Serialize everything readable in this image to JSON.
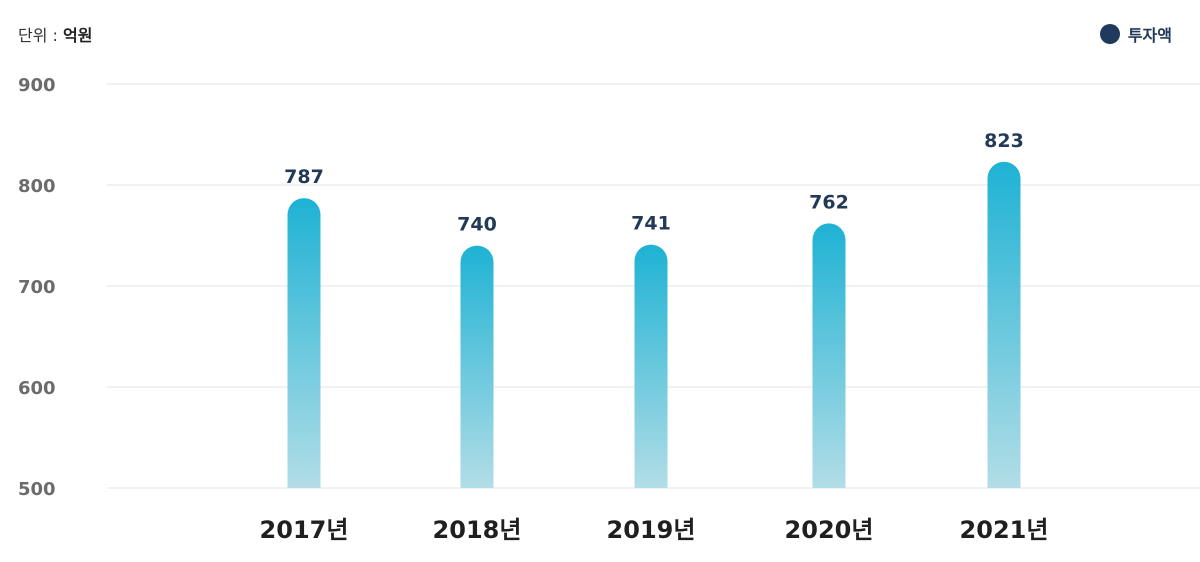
{
  "unit": {
    "label": "단위 : ",
    "value": "억원"
  },
  "legend": {
    "label": "투자액",
    "color": "#1f3a5c"
  },
  "chart_data": {
    "type": "bar",
    "categories": [
      "2017년",
      "2018년",
      "2019년",
      "2020년",
      "2021년"
    ],
    "series": [
      {
        "name": "투자액",
        "values": [
          787,
          740,
          741,
          762,
          823
        ]
      }
    ],
    "ylim": [
      500,
      900
    ],
    "yticks": [
      500,
      600,
      700,
      800,
      900
    ],
    "grid": true,
    "legend_position": "top-right",
    "bar_gradient": [
      "#1eb2d4",
      "#b2dde6"
    ]
  }
}
